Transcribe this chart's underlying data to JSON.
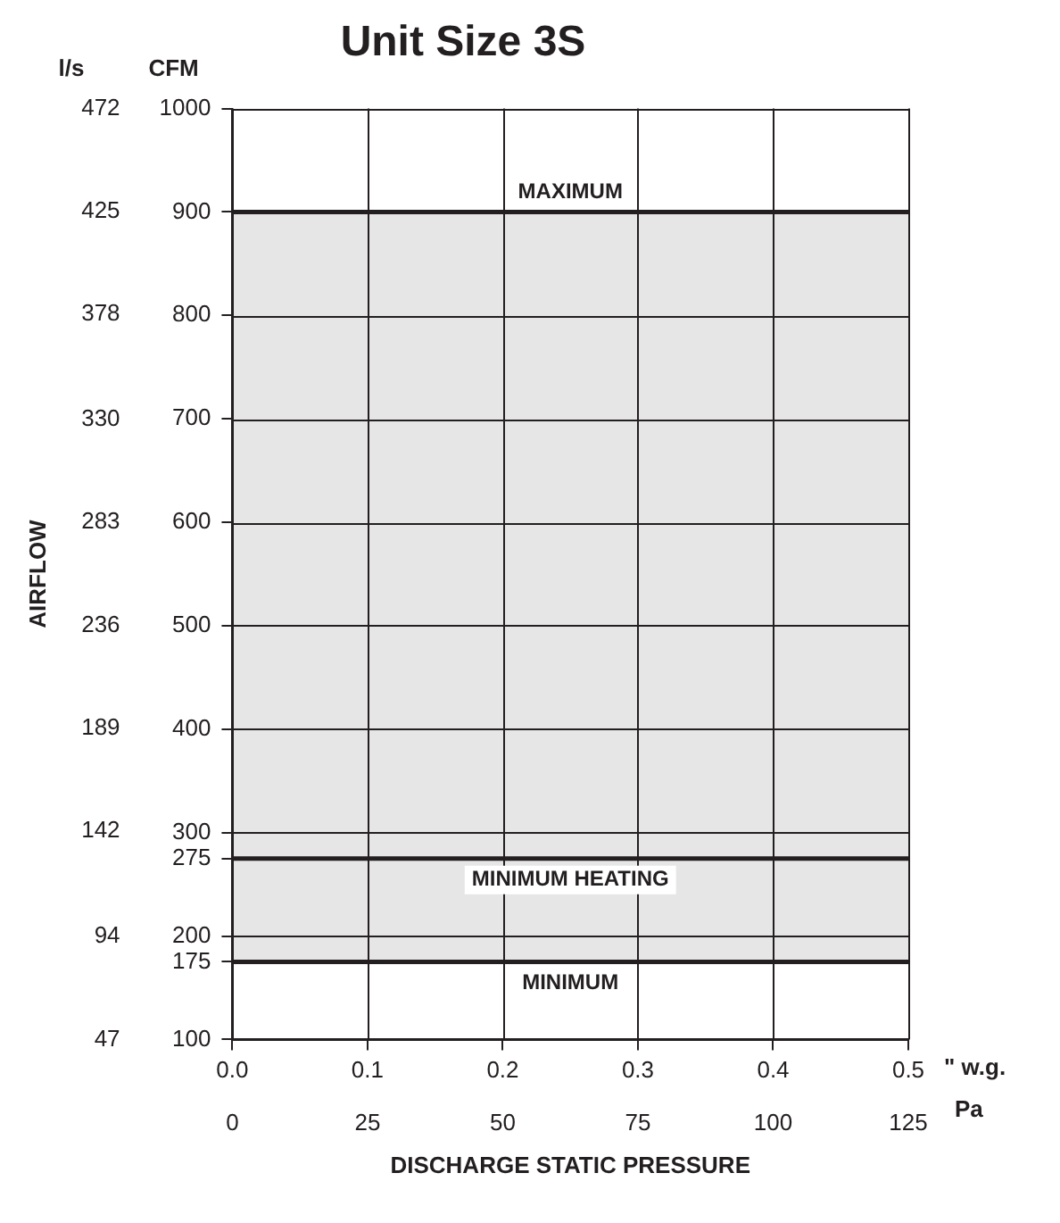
{
  "chart_data": {
    "type": "line",
    "title": "Unit Size 3S",
    "xlabel": "DISCHARGE STATIC PRESSURE",
    "y2label": "AIRFLOW",
    "annotations": [
      "l/s",
      "CFM",
      "\" w.g.",
      "Pa"
    ],
    "x": [
      0,
      0.5
    ],
    "series": [
      {
        "name": "MAXIMUM",
        "color": "#231f20",
        "values": [
          900,
          900
        ]
      },
      {
        "name": "MINIMUM HEATING",
        "color": "#231f20",
        "values": [
          275,
          275
        ]
      },
      {
        "name": "MINIMUM",
        "color": "#231f20",
        "values": [
          175,
          175
        ]
      }
    ],
    "xlim": [
      0,
      0.5
    ],
    "xticks": [
      {
        "value": 0,
        "label": "0.0"
      },
      0.1,
      0.2,
      0.3,
      0.4,
      0.5
    ],
    "x2lim": [
      0,
      125
    ],
    "x2ticks": [
      0,
      25,
      50,
      75,
      100,
      125
    ],
    "ylim": [
      100,
      1000
    ],
    "yticks": [
      100,
      175,
      200,
      275,
      300,
      400,
      500,
      600,
      700,
      800,
      900,
      1000
    ],
    "y2lim": [
      47,
      472
    ],
    "y2ticks": [
      47,
      94,
      142,
      189,
      236,
      283,
      330,
      378,
      425,
      472
    ],
    "bands": [
      {
        "axis": "y",
        "from": 175,
        "to": 900,
        "color": "#e6e6e7"
      }
    ],
    "grid": true,
    "legend": false,
    "marker": "none"
  }
}
